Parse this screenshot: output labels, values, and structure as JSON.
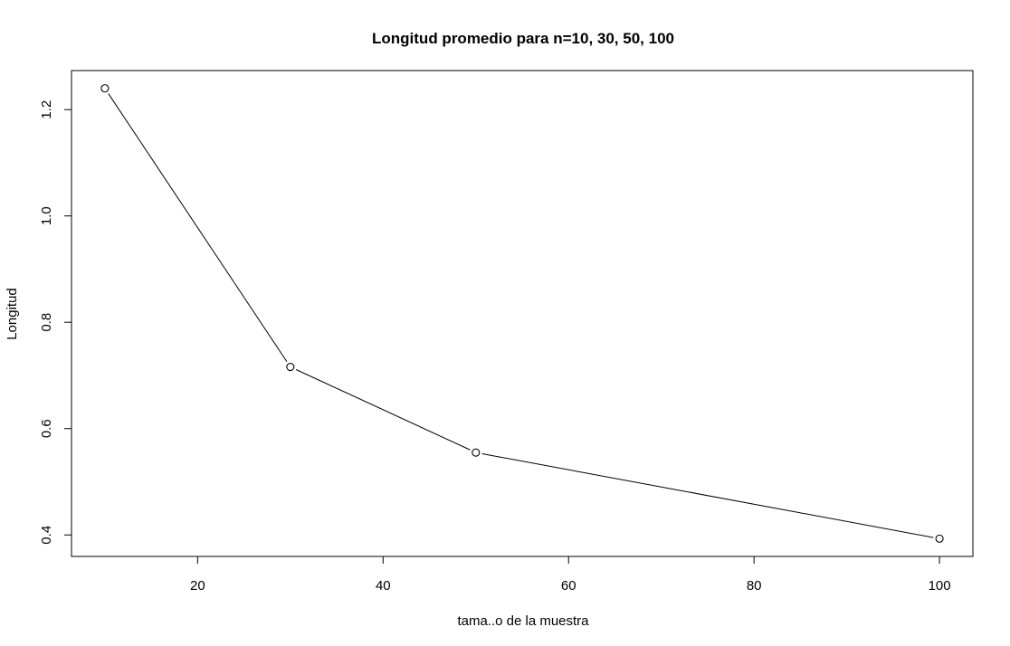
{
  "chart_data": {
    "type": "line",
    "title": "Longitud promedio para n=10, 30, 50, 100",
    "xlabel": "tama..o de la muestra",
    "ylabel": "Longitud",
    "x": [
      10,
      30,
      50,
      100
    ],
    "y": [
      1.24,
      0.716,
      0.555,
      0.393
    ],
    "x_ticks": [
      "20",
      "40",
      "60",
      "80",
      "100"
    ],
    "y_ticks": [
      "0.4",
      "0.6",
      "0.8",
      "1.0",
      "1.2"
    ],
    "xlim": [
      6.4,
      103.6
    ],
    "ylim": [
      0.3596,
      1.2734
    ],
    "point_marker": "open-circle",
    "line_color": "#000000",
    "grid": false
  }
}
